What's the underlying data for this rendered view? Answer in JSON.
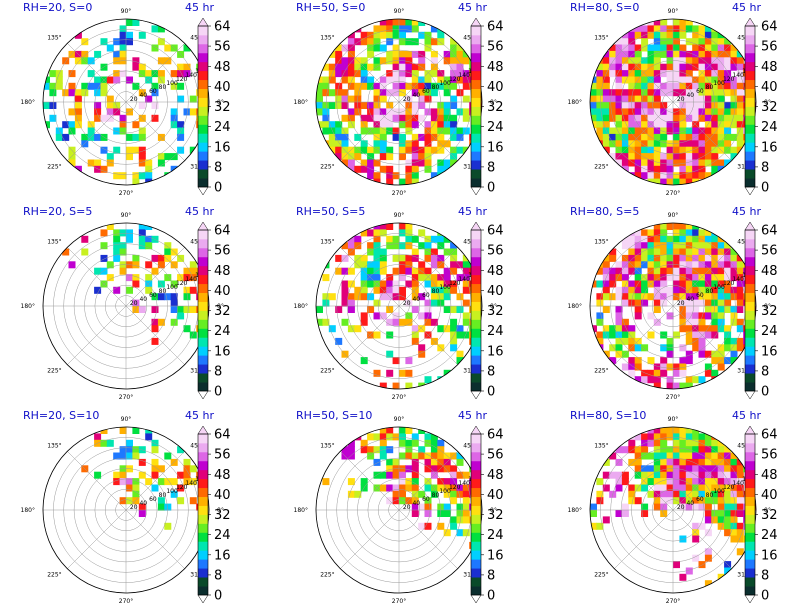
{
  "chart_data": {
    "type": "polar-field",
    "rows": 3,
    "cols": 3,
    "colorbar": {
      "ticks": [
        0,
        8,
        16,
        24,
        32,
        40,
        48,
        56,
        64
      ],
      "colors": [
        "#0b2e2e",
        "#0a4a2a",
        "#1a2fd0",
        "#1e78ff",
        "#00cfff",
        "#00e6b0",
        "#00e040",
        "#66ee22",
        "#c8f020",
        "#ffe010",
        "#ffb000",
        "#ff6a00",
        "#ff1a1a",
        "#e0007a",
        "#c000d0",
        "#dd66e6",
        "#ebaaf0",
        "#f6d6f6"
      ]
    },
    "angle_labels": [
      "90°",
      "45°",
      "0°",
      "315°",
      "270°",
      "225°",
      "180°",
      "135°"
    ],
    "radial_labels": [
      "20",
      "40",
      "60",
      "80",
      "100",
      "120",
      "140",
      "160"
    ],
    "panels": [
      {
        "title": "RH=20, S=0",
        "time": "45 hr",
        "rh": 20,
        "shear": 0
      },
      {
        "title": "RH=50, S=0",
        "time": "45 hr",
        "rh": 50,
        "shear": 0
      },
      {
        "title": "RH=80, S=0",
        "time": "45 hr",
        "rh": 80,
        "shear": 0
      },
      {
        "title": "RH=20, S=5",
        "time": "45 hr",
        "rh": 20,
        "shear": 5
      },
      {
        "title": "RH=50, S=5",
        "time": "45 hr",
        "rh": 50,
        "shear": 5
      },
      {
        "title": "RH=80, S=5",
        "time": "45 hr",
        "rh": 80,
        "shear": 5
      },
      {
        "title": "RH=20, S=10",
        "time": "45 hr",
        "rh": 20,
        "shear": 10
      },
      {
        "title": "RH=50, S=10",
        "time": "45 hr",
        "rh": 50,
        "shear": 10
      },
      {
        "title": "RH=80, S=10",
        "time": "45 hr",
        "rh": 80,
        "shear": 10
      }
    ]
  }
}
